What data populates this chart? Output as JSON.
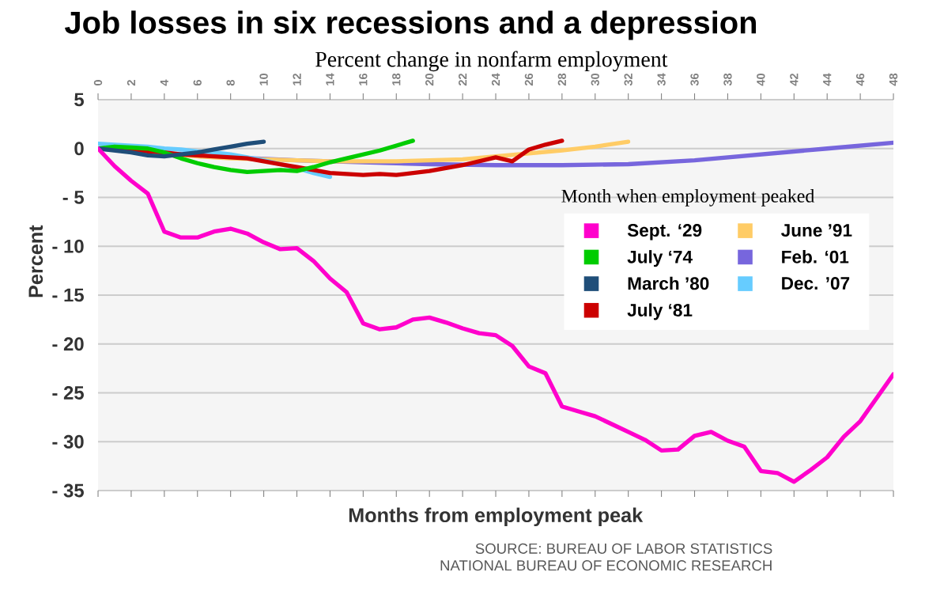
{
  "chart_data": {
    "type": "line",
    "title": "Job losses in six recessions and a depression",
    "subtitle": "Percent change in nonfarm employment",
    "xlabel": "Months from employment peak",
    "ylabel": "Percent",
    "legend_title": "Month when employment peaked",
    "annotations": [
      "SOURCE: BUREAU OF LABOR STATISTICS",
      "NATIONAL BUREAU OF ECONOMIC RESEARCH"
    ],
    "xlim": [
      0,
      48
    ],
    "xticks": [
      0,
      2,
      4,
      6,
      8,
      10,
      12,
      14,
      16,
      18,
      20,
      22,
      24,
      26,
      28,
      30,
      32,
      34,
      36,
      38,
      40,
      42,
      44,
      46,
      48
    ],
    "ylim": [
      -35,
      5
    ],
    "yticks": [
      5,
      0,
      {
        "value": -5,
        "label": "- 5"
      },
      {
        "value": -10,
        "label": "- 10"
      },
      {
        "value": -15,
        "label": "- 15"
      },
      {
        "value": -20,
        "label": "- 20"
      },
      {
        "value": -25,
        "label": "- 25"
      },
      {
        "value": -30,
        "label": "- 30"
      },
      {
        "value": -35,
        "label": "- 35"
      }
    ],
    "grid": "y",
    "legend": "right",
    "line_style": "solid",
    "marker": "none",
    "series": [
      {
        "name": "Sept. ‘29",
        "color": "#ff00cc",
        "x": [
          0,
          1,
          2,
          3,
          4,
          5,
          6,
          7,
          8,
          9,
          10,
          11,
          12,
          13,
          14,
          15,
          16,
          17,
          18,
          19,
          20,
          21,
          22,
          23,
          24,
          25,
          26,
          27,
          28,
          29,
          30,
          31,
          32,
          33,
          34,
          35,
          36,
          37,
          38,
          39,
          40,
          41,
          42,
          43,
          44,
          45,
          46,
          47,
          48
        ],
        "values": [
          0,
          -1.8,
          -3.3,
          -4.6,
          -8.5,
          -9.1,
          -9.1,
          -8.5,
          -8.2,
          -8.7,
          -9.6,
          -10.3,
          -10.2,
          -11.5,
          -13.3,
          -14.7,
          -17.9,
          -18.5,
          -18.3,
          -17.5,
          -17.3,
          -17.8,
          -18.4,
          -18.9,
          -19.1,
          -20.2,
          -22.3,
          -23,
          -26.4,
          -26.9,
          -27.4,
          -28.2,
          -29,
          -29.8,
          -30.9,
          -30.8,
          -29.4,
          -29,
          -29.9,
          -30.5,
          -33,
          -33.2,
          -34.1,
          -32.9,
          -31.6,
          -29.5,
          -27.9,
          -25.5,
          -23.1
        ]
      },
      {
        "name": "July ‘74",
        "color": "#00cc00",
        "x": [
          0,
          1,
          2,
          3,
          4,
          5,
          6,
          7,
          8,
          9,
          10,
          11,
          12,
          13,
          14,
          15,
          16,
          17,
          18,
          19
        ],
        "values": [
          0,
          0.2,
          0.1,
          0,
          -0.4,
          -1,
          -1.5,
          -1.9,
          -2.2,
          -2.4,
          -2.3,
          -2.2,
          -2.3,
          -1.9,
          -1.4,
          -1,
          -0.6,
          -0.2,
          0.3,
          0.8
        ]
      },
      {
        "name": "March ’80",
        "color": "#1f4e79",
        "x": [
          0,
          1,
          2,
          3,
          4,
          5,
          6,
          7,
          8,
          9,
          10
        ],
        "values": [
          0,
          -0.2,
          -0.4,
          -0.7,
          -0.8,
          -0.6,
          -0.4,
          -0.1,
          0.2,
          0.5,
          0.7
        ]
      },
      {
        "name": "July ‘81",
        "color": "#cc0000",
        "x": [
          0,
          1,
          2,
          3,
          4,
          5,
          6,
          7,
          8,
          9,
          10,
          11,
          12,
          13,
          14,
          15,
          16,
          17,
          18,
          19,
          20,
          21,
          22,
          23,
          24,
          25,
          26,
          27,
          28
        ],
        "values": [
          0,
          0,
          -0.1,
          -0.3,
          -0.4,
          -0.6,
          -0.7,
          -0.8,
          -0.9,
          -1,
          -1.3,
          -1.6,
          -1.9,
          -2.2,
          -2.5,
          -2.6,
          -2.7,
          -2.6,
          -2.7,
          -2.5,
          -2.3,
          -2,
          -1.7,
          -1.3,
          -0.9,
          -1.3,
          -0.1,
          0.4,
          0.8
        ]
      },
      {
        "name": "June ’91",
        "color": "#ffcc66",
        "x": [
          0,
          2,
          4,
          6,
          8,
          10,
          12,
          14,
          16,
          18,
          20,
          22,
          24,
          26,
          28,
          30,
          32
        ],
        "values": [
          0,
          -0.2,
          -0.5,
          -0.8,
          -1,
          -1.1,
          -1.2,
          -1.3,
          -1.3,
          -1.3,
          -1.2,
          -1.1,
          -0.8,
          -0.5,
          -0.2,
          0.2,
          0.7
        ]
      },
      {
        "name": "Feb. ‘01",
        "color": "#7766dd",
        "x": [
          0,
          4,
          8,
          12,
          16,
          20,
          24,
          28,
          32,
          36,
          40,
          44,
          48
        ],
        "values": [
          0,
          -0.5,
          -0.9,
          -1.2,
          -1.4,
          -1.6,
          -1.7,
          -1.7,
          -1.6,
          -1.2,
          -0.6,
          0,
          0.6
        ]
      },
      {
        "name": "Dec. ’07",
        "color": "#66ccff",
        "x": [
          0,
          1,
          2,
          3,
          4,
          5,
          6,
          7,
          8,
          9,
          10,
          11,
          12,
          13,
          14
        ],
        "values": [
          0.5,
          0.4,
          0.3,
          0.2,
          0,
          -0.1,
          -0.3,
          -0.4,
          -0.6,
          -0.9,
          -1.2,
          -1.6,
          -2,
          -2.5,
          -2.9
        ]
      }
    ]
  }
}
